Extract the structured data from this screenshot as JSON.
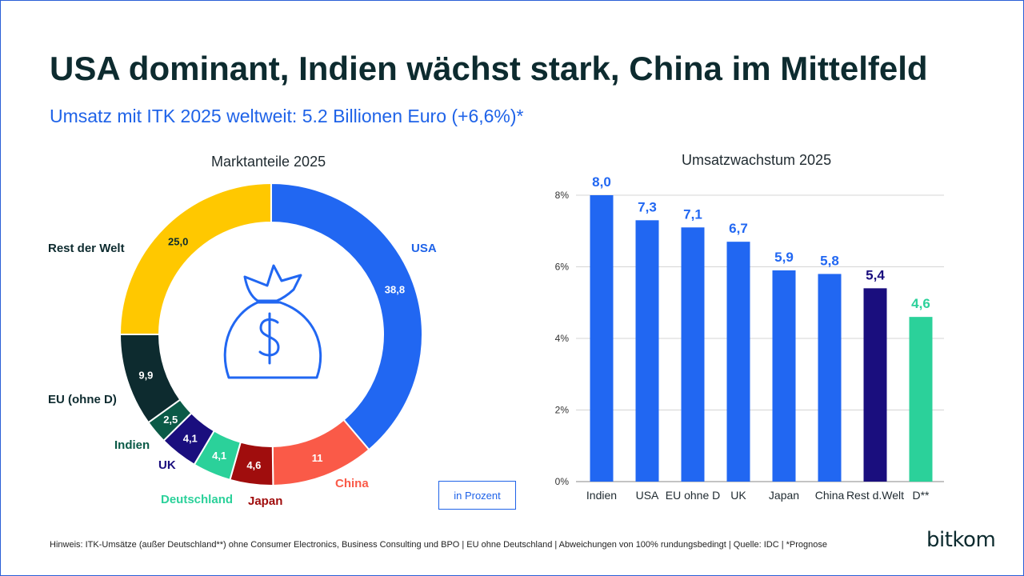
{
  "header": {
    "title": "USA dominant, Indien wächst stark, China im Mittelfeld",
    "subtitle": "Umsatz mit ITK 2025 weltweit: 5.2 Billionen Euro (+6,6%)*"
  },
  "colors": {
    "blue": "#2167f2",
    "red": "#fa5a48",
    "darkred": "#a00d0d",
    "green": "#2bd19a",
    "navy": "#1a0e7e",
    "darkgreen": "#0b5a47",
    "darkteal": "#0d2b2f",
    "yellow": "#ffc800"
  },
  "chart_data": [
    {
      "type": "pie",
      "title": "Marktanteile 2025",
      "slices": [
        {
          "label": "USA",
          "value": 38.8,
          "value_label": "38,8",
          "color": "#2167f2",
          "label_color": "#1f63e8"
        },
        {
          "label": "China",
          "value": 11,
          "value_label": "11",
          "color": "#fa5a48",
          "label_color": "#fa5a48"
        },
        {
          "label": "Japan",
          "value": 4.6,
          "value_label": "4,6",
          "color": "#a00d0d",
          "label_color": "#a00d0d"
        },
        {
          "label": "Deutschland",
          "value": 4.1,
          "value_label": "4,1",
          "color": "#2bd19a",
          "label_color": "#2bd19a"
        },
        {
          "label": "UK",
          "value": 4.1,
          "value_label": "4,1",
          "color": "#1a0e7e",
          "label_color": "#1a0e7e"
        },
        {
          "label": "Indien",
          "value": 2.5,
          "value_label": "2,5",
          "color": "#0b5a47",
          "label_color": "#0b5a47"
        },
        {
          "label": "EU (ohne D)",
          "value": 9.9,
          "value_label": "9,9",
          "color": "#0d2b2f",
          "label_color": "#0d2b2f"
        },
        {
          "label": "Rest der Welt",
          "value": 25.0,
          "value_label": "25,0",
          "color": "#ffc800",
          "label_color": "#0d2b2f"
        }
      ]
    },
    {
      "type": "bar",
      "title": "Umsatzwachstum 2025",
      "categories": [
        "Indien",
        "USA",
        "EU ohne D",
        "UK",
        "Japan",
        "China",
        "Rest d.Welt",
        "D**"
      ],
      "values": [
        8.0,
        7.3,
        7.1,
        6.7,
        5.9,
        5.8,
        5.4,
        4.6
      ],
      "value_labels": [
        "8,0",
        "7,3",
        "7,1",
        "6,7",
        "5,9",
        "5,8",
        "5,4",
        "4,6"
      ],
      "colors": [
        "#2167f2",
        "#2167f2",
        "#2167f2",
        "#2167f2",
        "#2167f2",
        "#2167f2",
        "#1a0e7e",
        "#2bd19a"
      ],
      "ylim": [
        0,
        8
      ],
      "yticks": [
        "0%",
        "2%",
        "4%",
        "6%",
        "8%"
      ],
      "grid": true
    }
  ],
  "unit_badge": "in Prozent",
  "footnote": "Hinweis: ITK-Umsätze  (außer Deutschland**) ohne Consumer Electronics, Business Consulting und BPO | EU ohne Deutschland | Abweichungen von 100% rundungsbedingt | Quelle: IDC | *Prognose",
  "brand": "bitkom",
  "icons": {
    "center": "money-bag-dollar-icon"
  }
}
